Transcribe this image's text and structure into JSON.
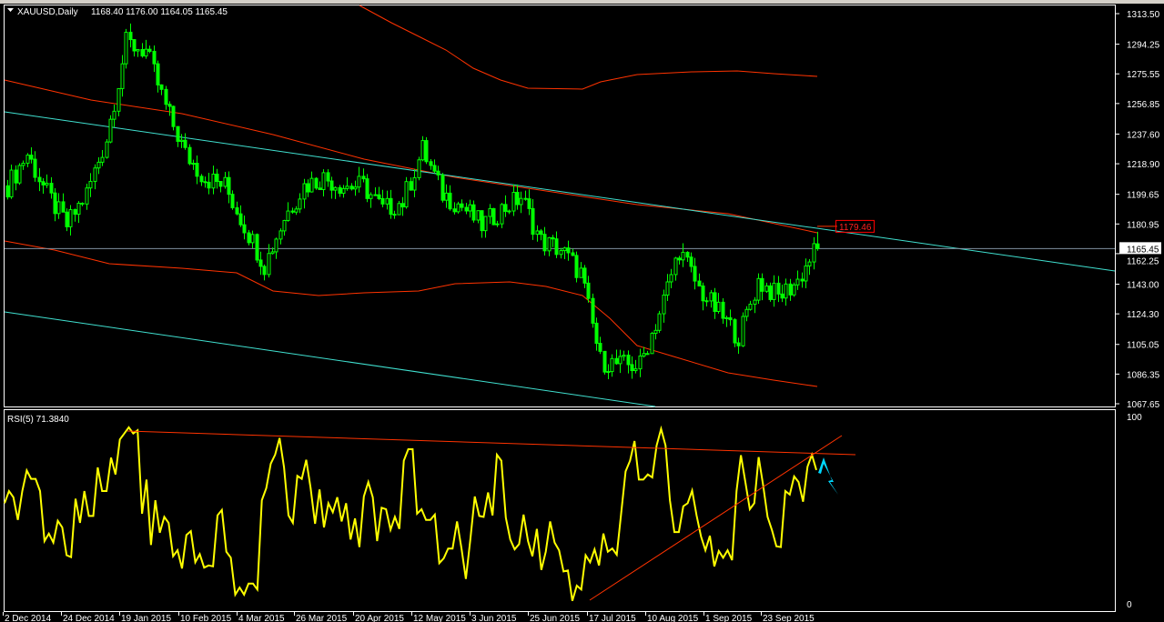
{
  "header": {
    "symbol": "XAUUSD,Daily",
    "ohlc": "1168.40 1176.00 1164.05 1165.45"
  },
  "rsi_header": "RSI(5) 71.3840",
  "colors": {
    "candle": "#00ff00",
    "rsi_line": "#ffff00",
    "envelope": "#ff3300",
    "channel": "#40e0d0",
    "arrow": "#00d8ff",
    "price_line": "#8090a0"
  },
  "chart_data": [
    {
      "type": "candlestick",
      "title": "XAUUSD,Daily",
      "ylim": [
        1067.65,
        1313.5
      ],
      "y_ticks": [
        "1313.50",
        "1294.25",
        "1275.55",
        "1256.85",
        "1237.60",
        "1218.90",
        "1199.65",
        "1180.95",
        "1162.25",
        "1143.00",
        "1124.30",
        "1105.05",
        "1086.35",
        "1067.65"
      ],
      "x_ticks": [
        "2 Dec 2014",
        "24 Dec 2014",
        "19 Jan 2015",
        "10 Feb 2015",
        "4 Mar 2015",
        "26 Mar 2015",
        "20 Apr 2015",
        "12 May 2015",
        "3 Jun 2015",
        "25 Jun 2015",
        "17 Jul 2015",
        "10 Aug 2015",
        "1 Sep 2015",
        "23 Sep 2015"
      ],
      "current_price": "1165.45",
      "marked_level": "1179.46",
      "approx_close_path": [
        1205,
        1225,
        1200,
        1180,
        1200,
        1235,
        1295,
        1290,
        1255,
        1225,
        1210,
        1205,
        1180,
        1155,
        1185,
        1205,
        1210,
        1205,
        1205,
        1190,
        1195,
        1228,
        1200,
        1192,
        1180,
        1190,
        1198,
        1170,
        1165,
        1150,
        1095,
        1092,
        1092,
        1125,
        1165,
        1140,
        1125,
        1110,
        1145,
        1135,
        1145,
        1168
      ],
      "last_bar": {
        "open": 1168.4,
        "high": 1176.0,
        "low": 1164.05,
        "close": 1165.45
      }
    },
    {
      "type": "line",
      "title": "RSI(5) 71.3840",
      "ylim": [
        0,
        100
      ],
      "y_ticks": [
        "100",
        "0"
      ],
      "values": [
        53.7,
        60.2,
        56.9,
        44.8,
        60.2,
        71.2,
        66.7,
        66.7,
        60.2,
        33.5,
        37.5,
        32.7,
        44.3,
        40.8,
        25.9,
        24.9,
        56.1,
        43.2,
        60.2,
        46.9,
        46.9,
        72.8,
        60.2,
        60.2,
        78,
        69.1,
        87.7,
        90.9,
        94.2,
        90.9,
        92.6,
        48.1,
        66.3,
        31.4,
        55.3,
        37.9,
        46.4,
        43.2,
        25.4,
        28.6,
        18.9,
        36.7,
        38.8,
        22.2,
        26.5,
        19.3,
        20.5,
        20,
        47.2,
        50.1,
        27.8,
        24.6,
        4.9,
        8.7,
        4.9,
        10.8,
        10.8,
        7.6,
        55.3,
        61.8,
        74.8,
        79.6,
        88.5,
        72.8,
        47.2,
        43.2,
        68.3,
        66.7,
        76.9,
        61.8,
        42.7,
        61,
        40.8,
        53.7,
        48.9,
        56.9,
        44,
        53.7,
        34.3,
        45.6,
        30.3,
        57.3,
        65,
        56.9,
        33.5,
        51.3,
        50.5,
        39.5,
        46.4,
        40,
        76.4,
        82.5,
        82.5,
        48.1,
        50.5,
        44.8,
        44.8,
        47.6,
        21.7,
        24.3,
        29.5,
        29.5,
        44,
        29.5,
        13.3,
        34.3,
        57.3,
        46.9,
        46.4,
        59.4,
        47.2,
        79.6,
        76.4,
        46,
        34.3,
        29.1,
        31.9,
        47.6,
        33.5,
        25.4,
        40,
        18.1,
        27.8,
        44,
        32.7,
        28.6,
        17.3,
        17.8,
        1.6,
        9.7,
        7.6,
        25.9,
        22.2,
        29.1,
        20.5,
        37.5,
        27.8,
        29.5,
        26.2,
        48.1,
        70.7,
        76.4,
        86.9,
        66.3,
        66.3,
        69.1,
        67.5,
        84.5,
        93.4,
        84.5,
        55.3,
        38.3,
        38.3,
        52.1,
        53.7,
        60.5,
        47.2,
        35.9,
        28.6,
        36.3,
        20,
        28.2,
        24.6,
        28.6,
        23.3,
        60.2,
        79.3,
        65,
        50.5,
        53.7,
        78.3,
        63.4,
        46.4,
        39.2,
        30.7,
        30.3,
        60.2,
        58.3,
        68,
        65,
        54.5,
        73.2,
        79.6,
        71.4
      ]
    }
  ]
}
